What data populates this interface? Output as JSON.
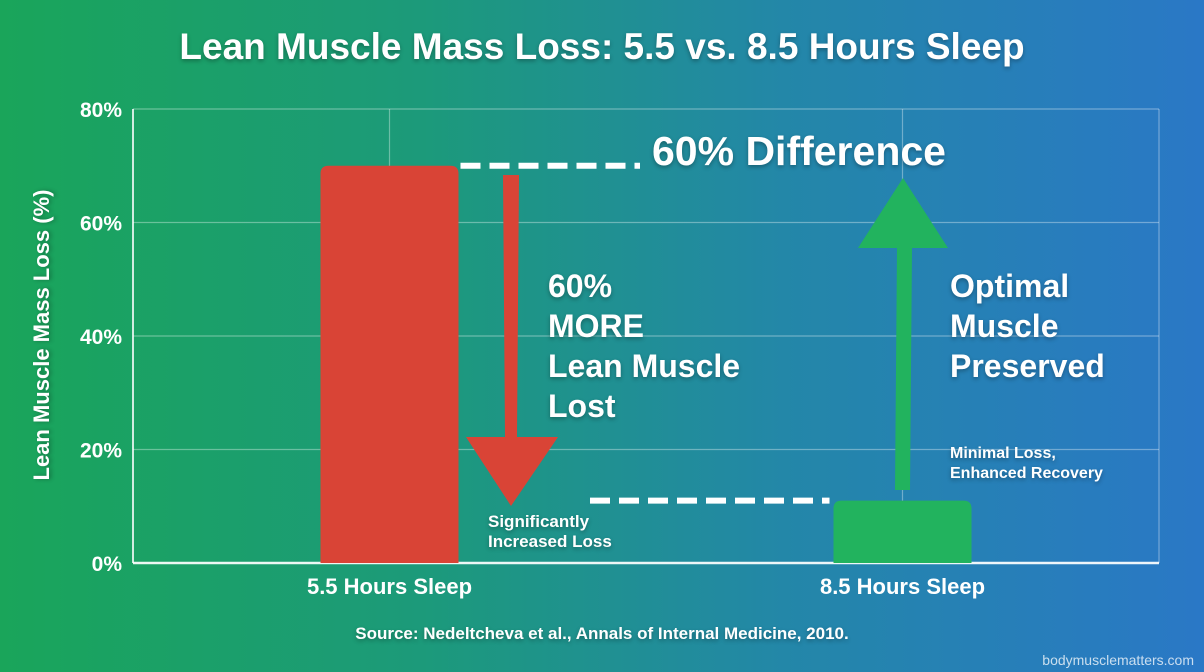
{
  "chart_data": {
    "type": "bar",
    "title": "Lean Muscle Mass Loss: 5.5 vs. 8.5 Hours Sleep",
    "xlabel": "",
    "ylabel": "Lean Muscle Mass Loss (%)",
    "categories": [
      "5.5 Hours Sleep",
      "8.5 Hours Sleep"
    ],
    "values": [
      70,
      11
    ],
    "bar_colors": [
      "#d94436",
      "#22b35e"
    ],
    "ylim": [
      0,
      80
    ],
    "yticks": [
      0,
      20,
      40,
      60,
      80
    ],
    "ytick_labels": [
      "0%",
      "20%",
      "40%",
      "60%",
      "80%"
    ],
    "grid": true,
    "annotations": {
      "difference": "60% Difference",
      "more_lost": [
        "60%",
        "MORE",
        "Lean Muscle",
        "Lost"
      ],
      "increased": [
        "Significantly",
        "Increased Loss"
      ],
      "preserved": [
        "Optimal",
        "Muscle",
        "Preserved"
      ],
      "minimal": [
        "Minimal Loss,",
        "Enhanced Recovery"
      ]
    },
    "arrow_colors": {
      "down": "#d94436",
      "up": "#22b35e"
    }
  },
  "source": "Source: Nedeltcheva et al., Annals of Internal Medicine, 2010.",
  "watermark": "bodymusclematters.com"
}
